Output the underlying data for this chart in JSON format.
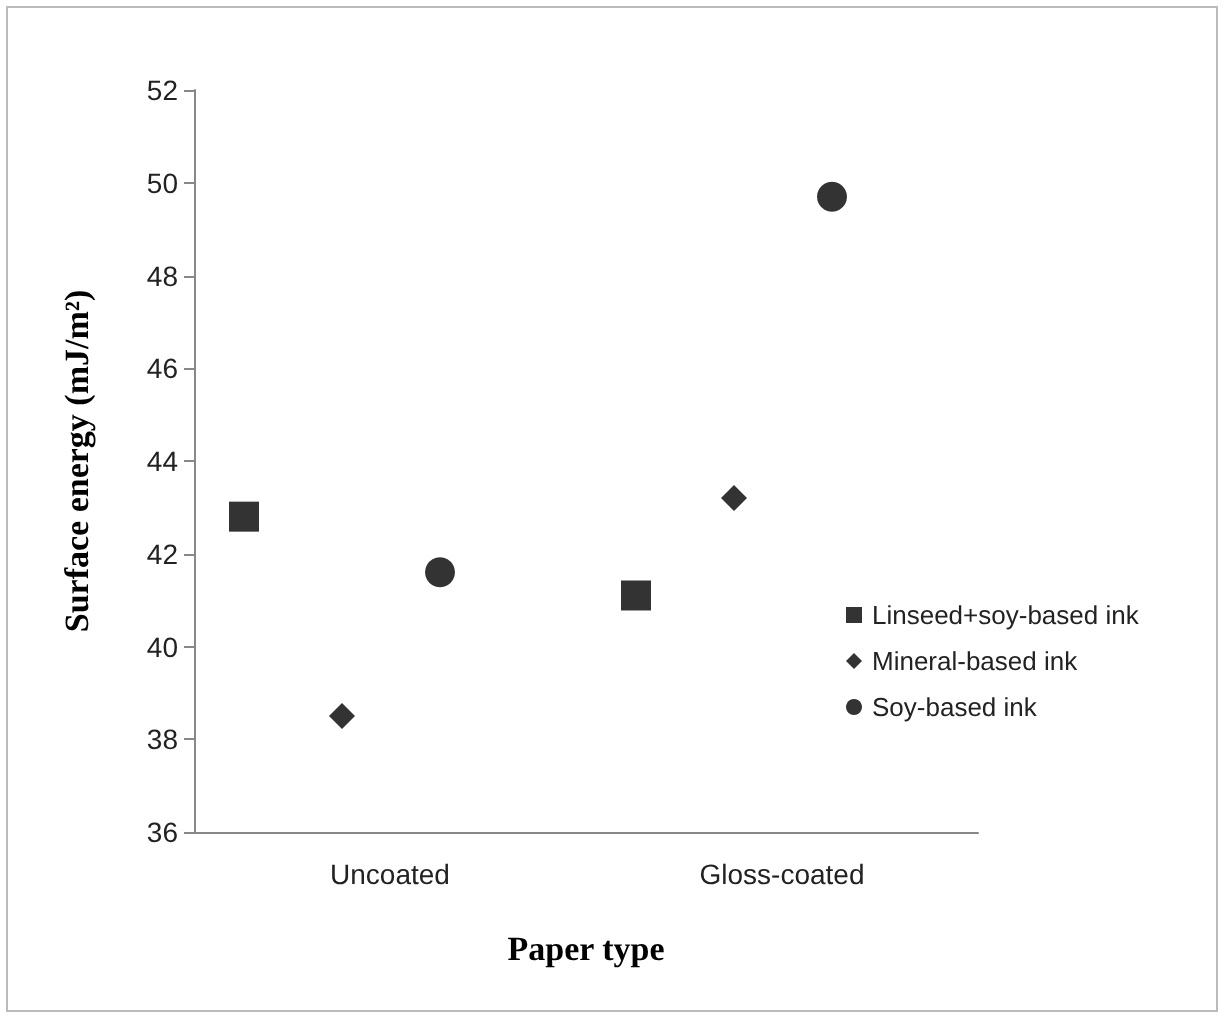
{
  "chart_data": {
    "type": "scatter",
    "xlabel": "Paper type",
    "ylabel": "Surface energy (mJ/m²)",
    "categories": [
      "Uncoated",
      "Gloss-coated"
    ],
    "series": [
      {
        "name": "Linseed+soy-based ink",
        "color": "#000000",
        "marker": "square",
        "values": [
          42.8,
          41.1
        ]
      },
      {
        "name": "Mineral-based ink",
        "color": "#000000",
        "marker": "diamond",
        "values": [
          38.5,
          43.2
        ]
      },
      {
        "name": "Soy-based ink",
        "color": "#000000",
        "marker": "circle",
        "values": [
          41.6,
          49.7
        ]
      }
    ],
    "ylim": [
      36,
      52
    ],
    "yticks": [
      36,
      38,
      40,
      42,
      44,
      46,
      48,
      50,
      52
    ],
    "grid": false,
    "legend": "right"
  }
}
